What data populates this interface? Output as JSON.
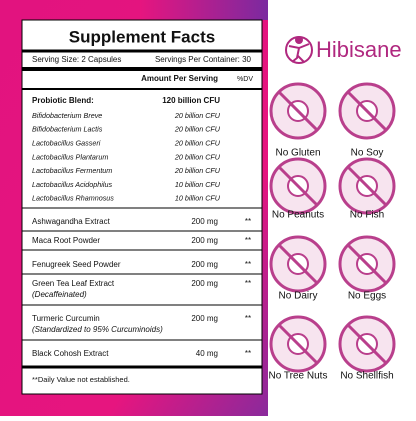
{
  "facts": {
    "title": "Supplement Facts",
    "serving_size": "Serving Size: 2 Capsules",
    "servings_per_container": "Servings Per Container: 30",
    "amount_header": "Amount Per Serving",
    "dv_header": "%DV",
    "blend": {
      "name": "Probiotic Blend:",
      "amount": "120 billion CFU",
      "items": [
        {
          "name": "Bifidobacterium Breve",
          "amount": "20 billion CFU"
        },
        {
          "name": "Bifidobacterium Lactis",
          "amount": "20 billion CFU"
        },
        {
          "name": "Lactobacillus Gasseri",
          "amount": "20 billion CFU"
        },
        {
          "name": "Lactobacillus Plantarum",
          "amount": "20 billion CFU"
        },
        {
          "name": "Lactobacillus Fermentum",
          "amount": "20 billion CFU"
        },
        {
          "name": "Lactobacillus Acidophilus",
          "amount": "10 billion CFU"
        },
        {
          "name": "Lactobacillus Rhamnosus",
          "amount": "10 billion CFU"
        }
      ]
    },
    "rows": [
      {
        "name": "Ashwagandha Extract",
        "amount": "200 mg",
        "dv": "**"
      },
      {
        "name": "Maca Root Powder",
        "amount": "200 mg",
        "dv": "**"
      },
      {
        "name": "Fenugreek Seed Powder",
        "amount": "200 mg",
        "dv": "**"
      },
      {
        "name": "Green Tea Leaf Extract",
        "sub": "(Decaffeinated)",
        "amount": "200 mg",
        "dv": "**"
      },
      {
        "name": "Turmeric Curcumin",
        "sub": "(Standardized to 95% Curcuminoids)",
        "amount": "200 mg",
        "dv": "**"
      },
      {
        "name": "Black Cohosh Extract",
        "amount": "40 mg",
        "dv": "**"
      }
    ],
    "footnote": "**Daily Value not established."
  },
  "brand": {
    "name": "Hibisane"
  },
  "badges": [
    "No Gluten",
    "No Soy",
    "No Peanuts",
    "No Fish",
    "No Dairy",
    "No Eggs",
    "No Tree Nuts",
    "No Shellfish"
  ]
}
